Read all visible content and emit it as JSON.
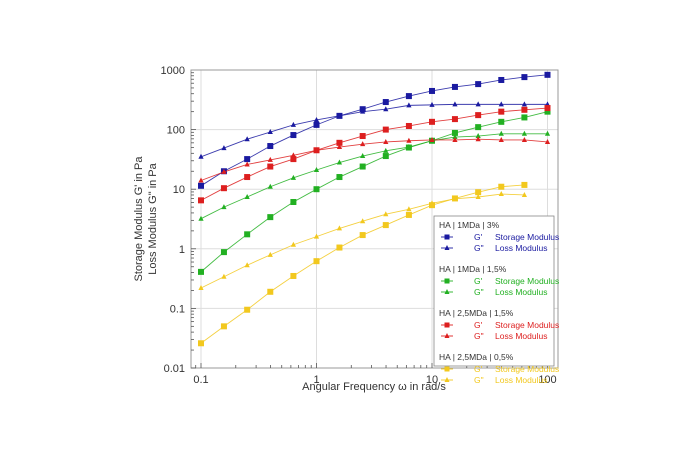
{
  "chart_data": {
    "type": "line",
    "title": "",
    "xlabel": "Angular Frequency ω in rad/s",
    "ylabel": [
      "Storage Modulus G' in Pa",
      "Loss Modulus G\" in Pa"
    ],
    "xscale": "log",
    "yscale": "log",
    "xlim": [
      0.08,
      100
    ],
    "ylim": [
      0.01,
      1000
    ],
    "xticks": [
      "0.1",
      "1",
      "10",
      "100"
    ],
    "yticks": [
      "0.01",
      "0.1",
      "1",
      "10",
      "100",
      "1000"
    ],
    "grid": true,
    "legend_position": "lower right (inside)",
    "x": [
      0.1,
      0.158,
      0.251,
      0.398,
      0.631,
      1,
      1.58,
      2.51,
      3.98,
      6.31,
      10,
      15.8,
      25.1,
      39.8,
      63.1,
      100
    ],
    "series": [
      {
        "group": "HA | 1MDa | 3%",
        "name": "G' Storage Modulus",
        "color": "#1a1aa0",
        "marker": "square",
        "values": [
          11.4,
          20,
          32,
          53,
          81,
          120,
          170,
          220,
          290,
          365,
          445,
          520,
          580,
          680,
          760,
          830
        ]
      },
      {
        "group": "HA | 1MDa | 3%",
        "name": "G\" Loss Modulus",
        "color": "#1a1aa0",
        "marker": "triangle",
        "values": [
          35,
          49,
          69,
          91,
          120,
          145,
          170,
          200,
          220,
          255,
          260,
          265,
          265,
          265,
          265,
          265
        ]
      },
      {
        "group": "HA | 1MDa | 1,5%",
        "name": "G' Storage Modulus",
        "color": "#22b022",
        "marker": "square",
        "values": [
          0.41,
          0.88,
          1.75,
          3.4,
          6.1,
          10,
          16,
          24,
          36,
          50,
          65,
          88,
          110,
          135,
          160,
          200
        ]
      },
      {
        "group": "HA | 1MDa | 1,5%",
        "name": "G\" Loss Modulus",
        "color": "#22b022",
        "marker": "triangle",
        "values": [
          3.2,
          5,
          7.4,
          11,
          15.5,
          21,
          28,
          36,
          44,
          51,
          65,
          75,
          78,
          85,
          85,
          85
        ]
      },
      {
        "group": "HA | 2,5MDa | 1,5%",
        "name": "G' Storage Modulus",
        "color": "#dd1f1f",
        "marker": "square",
        "values": [
          6.5,
          10.4,
          16,
          24,
          32,
          45,
          60,
          78,
          100,
          115,
          135,
          150,
          175,
          200,
          215,
          230
        ]
      },
      {
        "group": "HA | 2,5MDa | 1,5%",
        "name": "G\" Loss Modulus",
        "color": "#dd1f1f",
        "marker": "triangle",
        "values": [
          14,
          19.5,
          26,
          31,
          37,
          45,
          51,
          57,
          62,
          65,
          67,
          67,
          69,
          67,
          67,
          62
        ]
      },
      {
        "group": "HA | 2,5MDa | 0,5%",
        "name": "G' Storage Modulus",
        "color": "#f2c81e",
        "marker": "square",
        "values": [
          0.026,
          0.05,
          0.095,
          0.19,
          0.35,
          0.62,
          1.05,
          1.7,
          2.5,
          3.7,
          5.4,
          7,
          8.9,
          11,
          11.8,
          null
        ]
      },
      {
        "group": "HA | 2,5MDa | 0,5%",
        "name": "G\" Loss Modulus",
        "color": "#f2c81e",
        "marker": "triangle",
        "values": [
          0.22,
          0.34,
          0.53,
          0.79,
          1.17,
          1.6,
          2.2,
          2.9,
          3.8,
          4.6,
          5.8,
          6.9,
          7.4,
          8.3,
          8.0,
          null
        ]
      }
    ]
  },
  "legend": {
    "groups": [
      {
        "title": "HA | 1MDa | 3%",
        "color": "#1a1aa0",
        "items": [
          {
            "symbol": "G'",
            "label": "Storage Modulus"
          },
          {
            "symbol": "G\"",
            "label": "Loss Modulus"
          }
        ]
      },
      {
        "title": "HA | 1MDa | 1,5%",
        "color": "#22b022",
        "items": [
          {
            "symbol": "G'",
            "label": "Storage Modulus"
          },
          {
            "symbol": "G\"",
            "label": "Loss Modulus"
          }
        ]
      },
      {
        "title": "HA | 2,5MDa | 1,5%",
        "color": "#dd1f1f",
        "items": [
          {
            "symbol": "G'",
            "label": "Storage Modulus"
          },
          {
            "symbol": "G\"",
            "label": "Loss Modulus"
          }
        ]
      },
      {
        "title": "HA | 2,5MDa | 0,5%",
        "color": "#f2c81e",
        "items": [
          {
            "symbol": "G'",
            "label": "Storage Modulus"
          },
          {
            "symbol": "G\"",
            "label": "Loss Modulus"
          }
        ]
      }
    ]
  }
}
